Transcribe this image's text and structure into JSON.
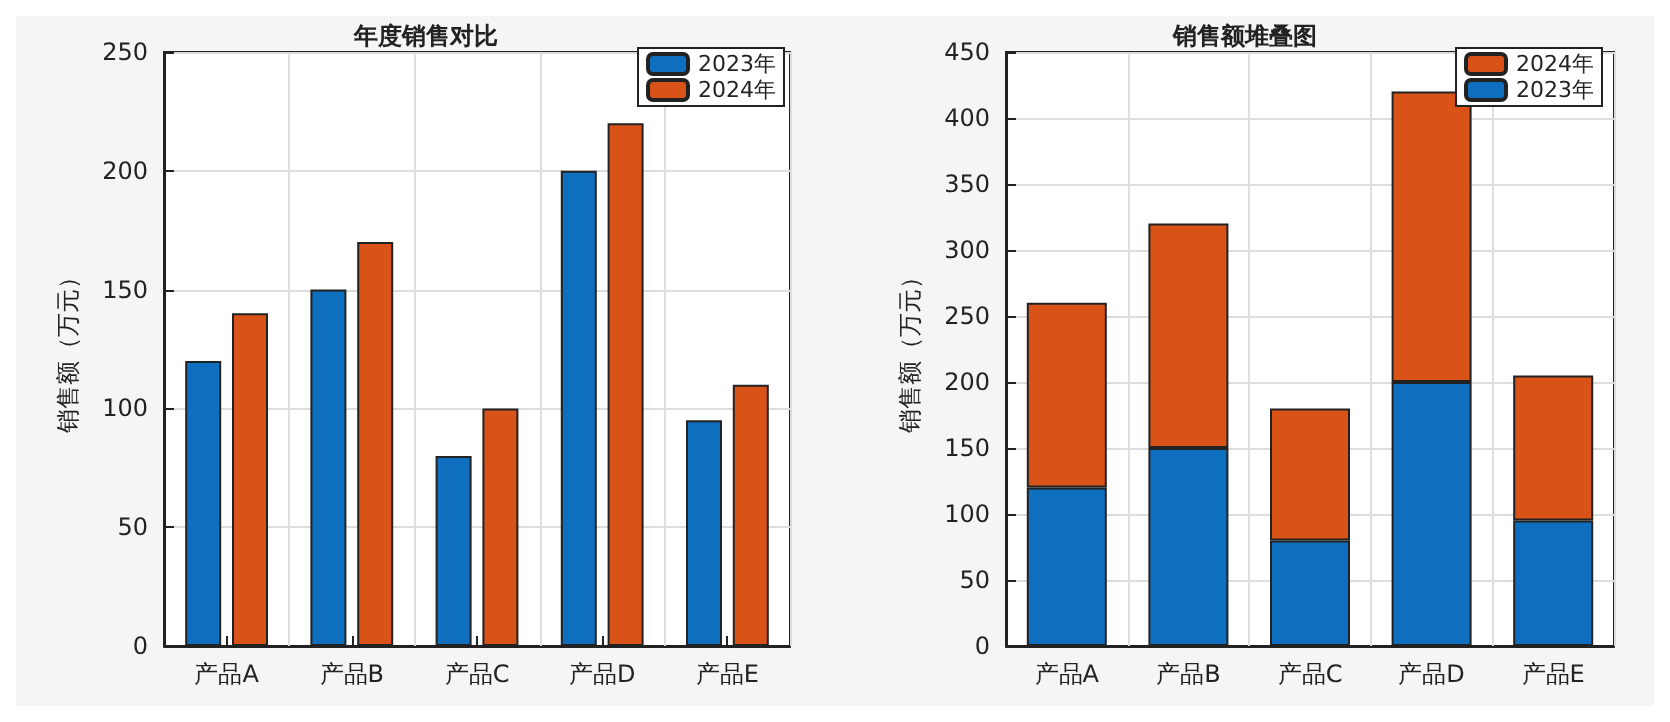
{
  "chart_data": [
    {
      "type": "bar",
      "title": "年度销售对比",
      "ylabel": "销售额（万元）",
      "categories": [
        "产品A",
        "产品B",
        "产品C",
        "产品D",
        "产品E"
      ],
      "series": [
        {
          "name": "2023年",
          "color": "#0f6fbf",
          "values": [
            120,
            150,
            80,
            200,
            95
          ]
        },
        {
          "name": "2024年",
          "color": "#d95319",
          "values": [
            140,
            170,
            100,
            220,
            110
          ]
        }
      ],
      "ylim": [
        0,
        250
      ],
      "yticks": [
        0,
        50,
        100,
        150,
        200,
        250
      ],
      "grid": true,
      "legend": "top right"
    },
    {
      "type": "bar",
      "title": "销售额堆叠图",
      "ylabel": "销售额（万元）",
      "categories": [
        "产品A",
        "产品B",
        "产品C",
        "产品D",
        "产品E"
      ],
      "stacked": true,
      "series": [
        {
          "name": "2023年",
          "color": "#0f6fbf",
          "values": [
            120,
            150,
            80,
            200,
            95
          ]
        },
        {
          "name": "2024年",
          "color": "#d95319",
          "values": [
            140,
            170,
            100,
            220,
            110
          ]
        }
      ],
      "ylim": [
        0,
        450
      ],
      "yticks": [
        0,
        50,
        100,
        150,
        200,
        250,
        300,
        350,
        400,
        450
      ],
      "grid": true,
      "legend": "top right"
    }
  ]
}
